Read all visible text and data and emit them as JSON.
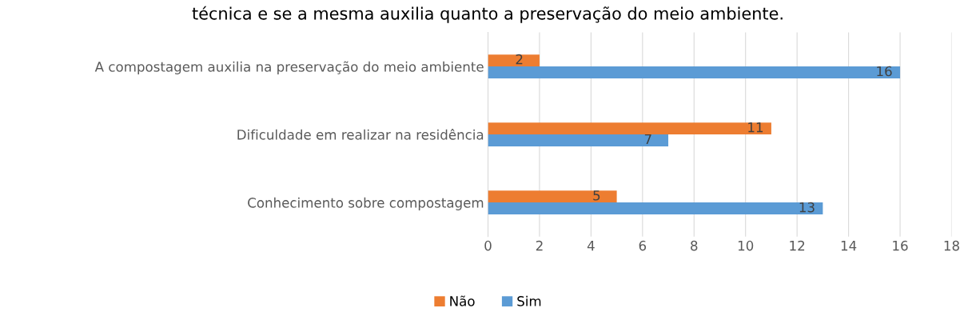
{
  "chart_data": {
    "type": "bar",
    "orientation": "horizontal",
    "title": "técnica e se a mesma auxilia quanto a preservação do meio ambiente.",
    "categories": [
      "A compostagem auxilia na preservação do meio ambiente",
      "Dificuldade em realizar na residência",
      "Conhecimento sobre compostagem"
    ],
    "series": [
      {
        "name": "Não",
        "color": "#ed7d31",
        "values": [
          2,
          11,
          5
        ]
      },
      {
        "name": "Sim",
        "color": "#5b9bd5",
        "values": [
          16,
          7,
          13
        ]
      }
    ],
    "xlim": [
      0,
      18
    ],
    "xticks": [
      0,
      2,
      4,
      6,
      8,
      10,
      12,
      14,
      16,
      18
    ],
    "grid": "x",
    "legend": "bottom",
    "data_labels": true
  }
}
